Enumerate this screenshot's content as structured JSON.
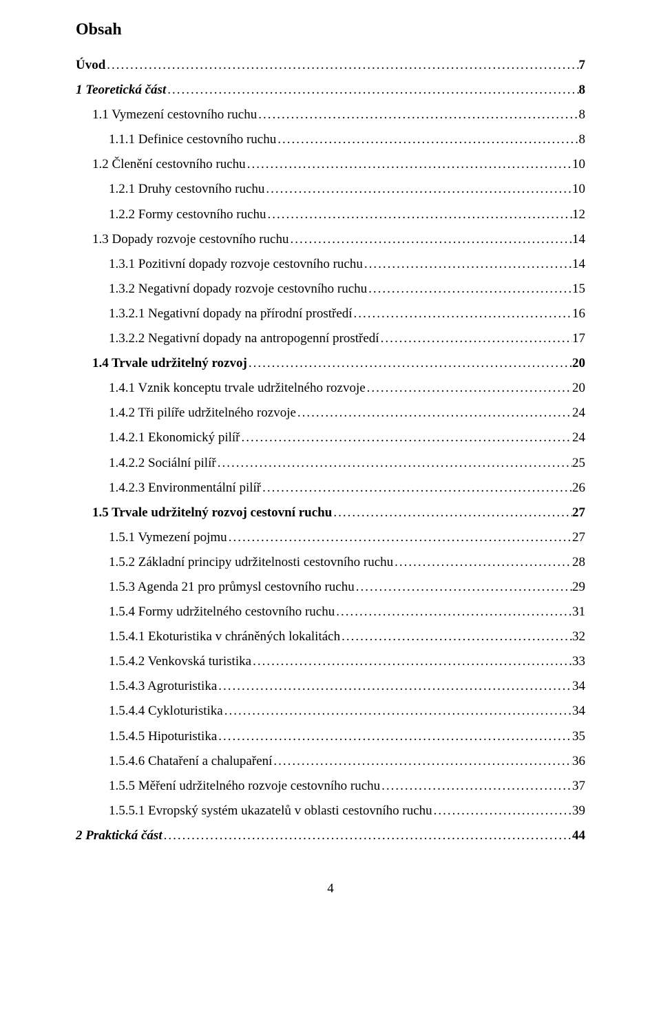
{
  "title": "Obsah",
  "footer_page": "4",
  "entries": [
    {
      "label": "Úvod",
      "page": "7",
      "indent": 0,
      "bold": true,
      "italic": false
    },
    {
      "label": "1 Teoretická část",
      "page": "8",
      "indent": 0,
      "bold": true,
      "italic": true
    },
    {
      "label": "1.1 Vymezení cestovního ruchu",
      "page": "8",
      "indent": 1,
      "bold": false,
      "italic": false
    },
    {
      "label": "1.1.1 Definice cestovního ruchu",
      "page": "8",
      "indent": 2,
      "bold": false,
      "italic": false
    },
    {
      "label": "1.2 Členění cestovního ruchu",
      "page": "10",
      "indent": 1,
      "bold": false,
      "italic": false
    },
    {
      "label": "1.2.1 Druhy cestovního ruchu",
      "page": "10",
      "indent": 2,
      "bold": false,
      "italic": false
    },
    {
      "label": "1.2.2 Formy cestovního ruchu",
      "page": "12",
      "indent": 2,
      "bold": false,
      "italic": false
    },
    {
      "label": "1.3 Dopady rozvoje cestovního ruchu",
      "page": "14",
      "indent": 1,
      "bold": false,
      "italic": false
    },
    {
      "label": "1.3.1 Pozitivní dopady rozvoje cestovního ruchu",
      "page": "14",
      "indent": 2,
      "bold": false,
      "italic": false
    },
    {
      "label": "1.3.2 Negativní dopady rozvoje cestovního ruchu",
      "page": "15",
      "indent": 2,
      "bold": false,
      "italic": false
    },
    {
      "label": "1.3.2.1 Negativní dopady na přírodní prostředí",
      "page": "16",
      "indent": 3,
      "bold": false,
      "italic": false
    },
    {
      "label": "1.3.2.2 Negativní dopady na antropogenní prostředí",
      "page": "17",
      "indent": 3,
      "bold": false,
      "italic": false
    },
    {
      "label": "1.4 Trvale udržitelný rozvoj",
      "page": "20",
      "indent": 1,
      "bold": true,
      "italic": false
    },
    {
      "label": "1.4.1 Vznik konceptu trvale udržitelného rozvoje",
      "page": "20",
      "indent": 2,
      "bold": false,
      "italic": false
    },
    {
      "label": "1.4.2 Tři pilíře udržitelného rozvoje",
      "page": "24",
      "indent": 2,
      "bold": false,
      "italic": false
    },
    {
      "label": "1.4.2.1 Ekonomický pilíř",
      "page": "24",
      "indent": 3,
      "bold": false,
      "italic": false
    },
    {
      "label": "1.4.2.2 Sociální pilíř",
      "page": "25",
      "indent": 3,
      "bold": false,
      "italic": false
    },
    {
      "label": "1.4.2.3 Environmentální pilíř",
      "page": "26",
      "indent": 3,
      "bold": false,
      "italic": false
    },
    {
      "label": "1.5 Trvale udržitelný rozvoj cestovní ruchu",
      "page": "27",
      "indent": 1,
      "bold": true,
      "italic": false
    },
    {
      "label": "1.5.1 Vymezení pojmu",
      "page": "27",
      "indent": 2,
      "bold": false,
      "italic": false
    },
    {
      "label": "1.5.2 Základní principy udržitelnosti cestovního ruchu",
      "page": "28",
      "indent": 2,
      "bold": false,
      "italic": false
    },
    {
      "label": "1.5.3 Agenda 21 pro průmysl cestovního ruchu",
      "page": "29",
      "indent": 2,
      "bold": false,
      "italic": false
    },
    {
      "label": "1.5.4 Formy udržitelného cestovního ruchu",
      "page": "31",
      "indent": 2,
      "bold": false,
      "italic": false
    },
    {
      "label": "1.5.4.1 Ekoturistika v chráněných lokalitách",
      "page": "32",
      "indent": 3,
      "bold": false,
      "italic": false
    },
    {
      "label": "1.5.4.2 Venkovská turistika",
      "page": "33",
      "indent": 3,
      "bold": false,
      "italic": false
    },
    {
      "label": "1.5.4.3 Agroturistika",
      "page": "34",
      "indent": 3,
      "bold": false,
      "italic": false
    },
    {
      "label": "1.5.4.4 Cykloturistika",
      "page": "34",
      "indent": 3,
      "bold": false,
      "italic": false
    },
    {
      "label": "1.5.4.5 Hipoturistika",
      "page": "35",
      "indent": 3,
      "bold": false,
      "italic": false
    },
    {
      "label": "1.5.4.6 Chataření a chalupaření",
      "page": "36",
      "indent": 3,
      "bold": false,
      "italic": false
    },
    {
      "label": "1.5.5 Měření udržitelného rozvoje cestovního ruchu",
      "page": "37",
      "indent": 2,
      "bold": false,
      "italic": false
    },
    {
      "label": "1.5.5.1 Evropský systém ukazatelů v oblasti cestovního ruchu",
      "page": "39",
      "indent": 3,
      "bold": false,
      "italic": false
    },
    {
      "label": "2    Praktická část",
      "page": "44",
      "indent": 0,
      "bold": true,
      "italic": true
    }
  ]
}
